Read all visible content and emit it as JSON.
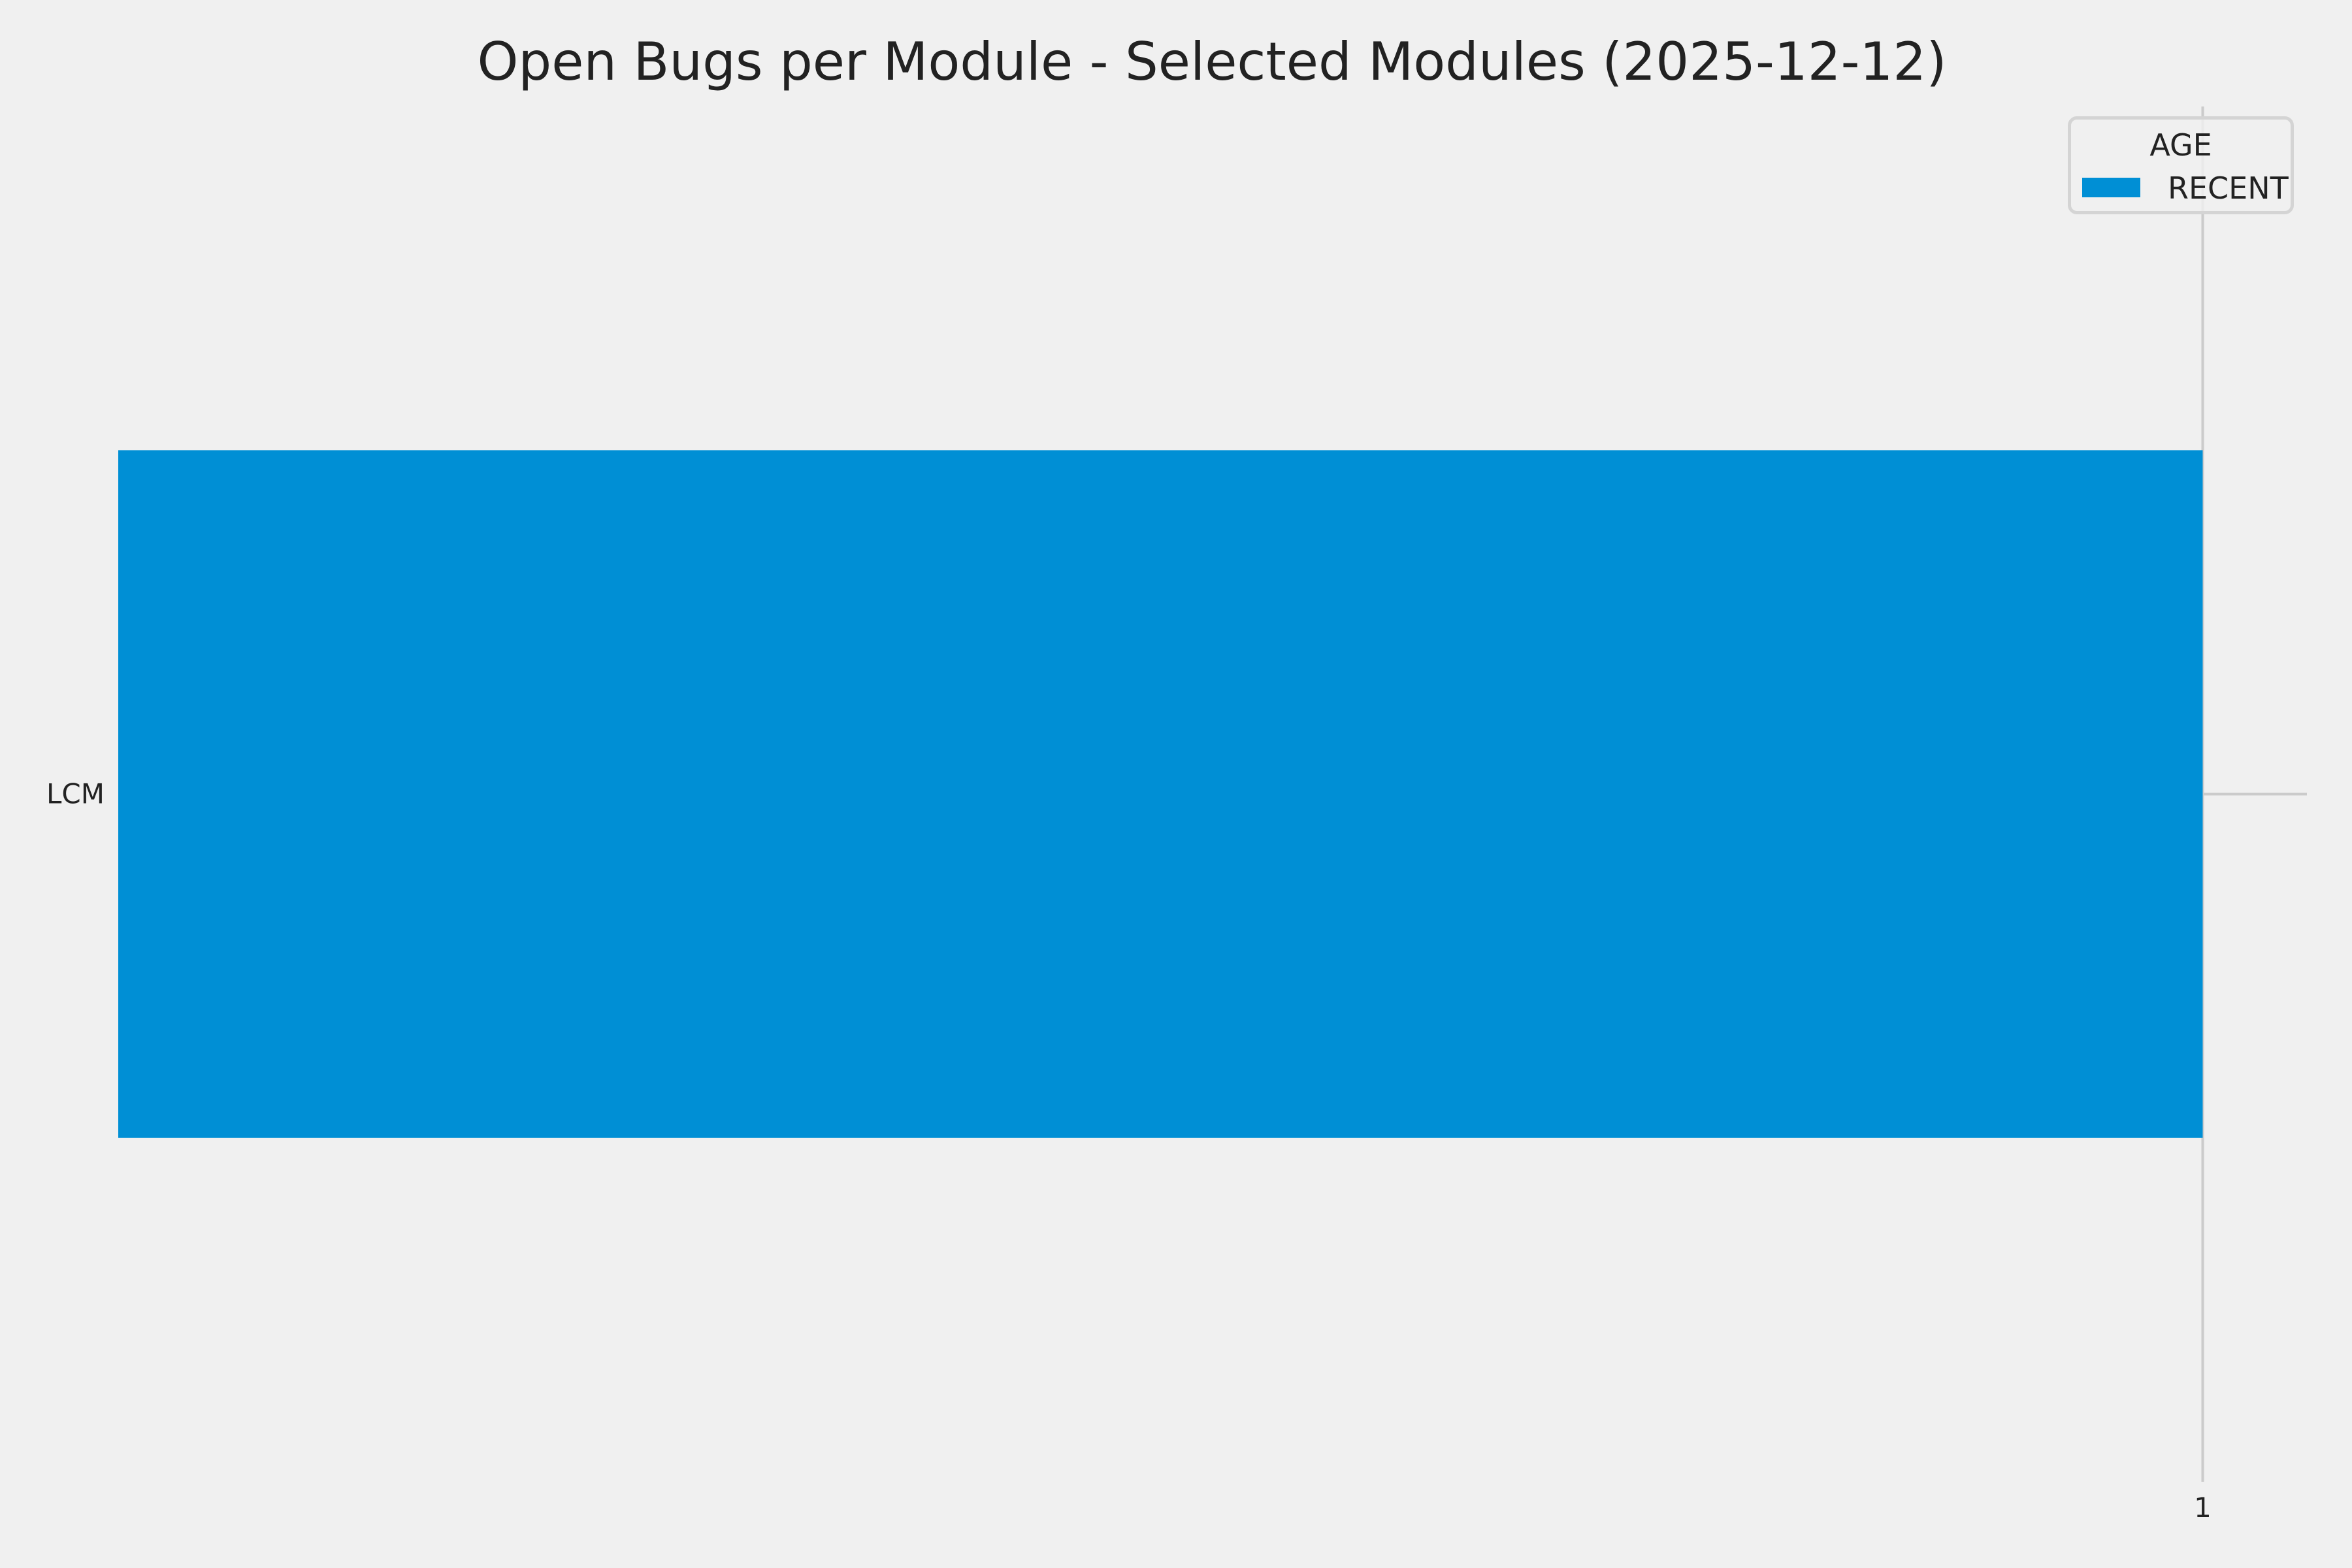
{
  "chart_data": {
    "type": "bar",
    "orientation": "horizontal",
    "title": "Open Bugs per Module - Selected Modules (2025-12-12)",
    "xlabel": "",
    "ylabel": "",
    "categories": [
      "LCM"
    ],
    "series": [
      {
        "name": "RECENT",
        "values": [
          1
        ],
        "color": "#008fd5"
      }
    ],
    "xlim": [
      0,
      1.05
    ],
    "x_ticks": [
      "1"
    ],
    "grid": true,
    "legend": {
      "title": "AGE",
      "placement": "top-right"
    }
  }
}
